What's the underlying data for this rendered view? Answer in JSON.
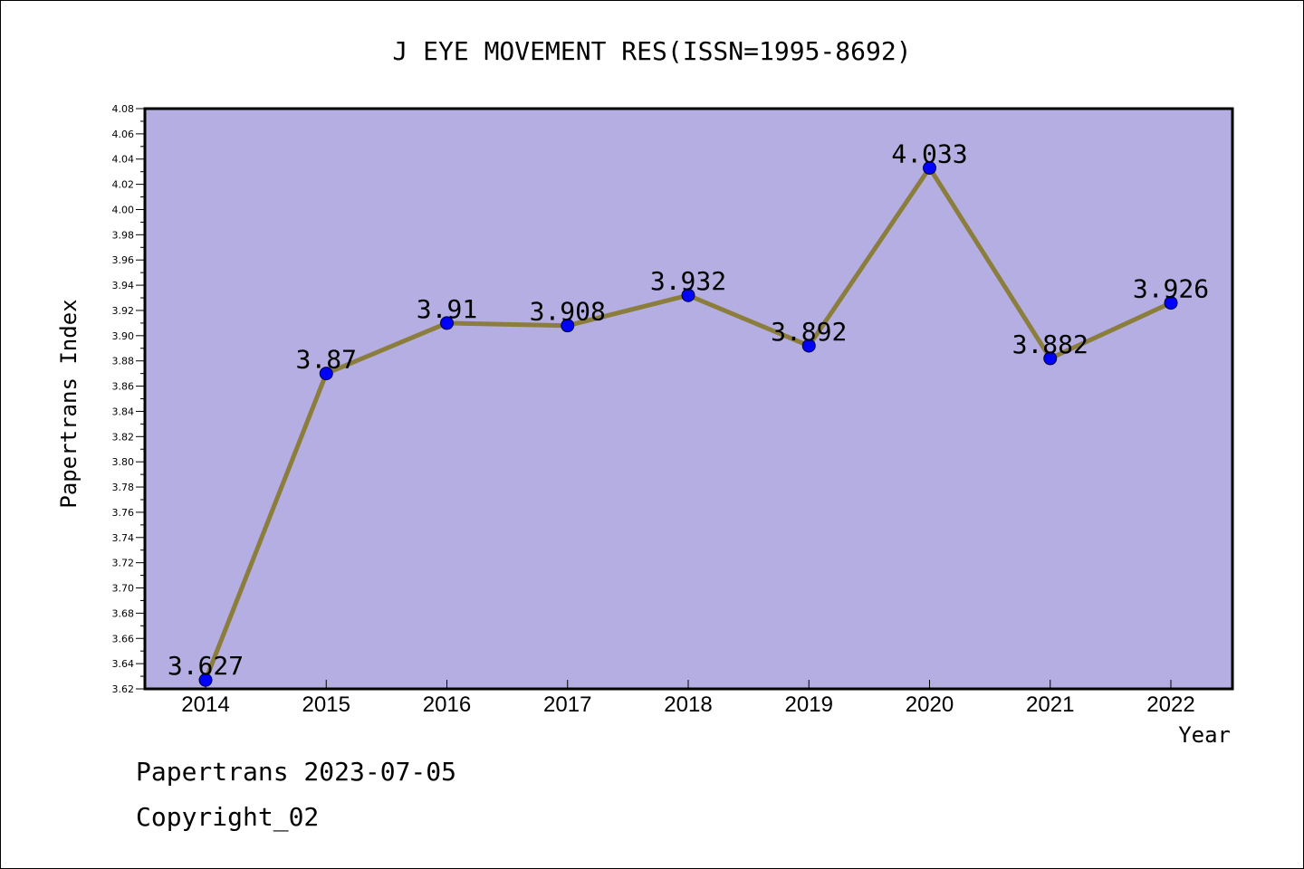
{
  "chart_data": {
    "type": "line",
    "title": "J EYE MOVEMENT RES(ISSN=1995-8692)",
    "xlabel": "Year",
    "ylabel": "Papertrans Index",
    "categories": [
      "2014",
      "2015",
      "2016",
      "2017",
      "2018",
      "2019",
      "2020",
      "2021",
      "2022"
    ],
    "values": [
      3.627,
      3.87,
      3.91,
      3.908,
      3.932,
      3.892,
      4.033,
      3.882,
      3.926
    ],
    "data_labels": [
      "3.627",
      "3.87",
      "3.91",
      "3.908",
      "3.932",
      "3.892",
      "4.033",
      "3.882",
      "3.926"
    ],
    "ylim": [
      3.62,
      4.08
    ],
    "yticks": [
      "3.62",
      "3.64",
      "3.66",
      "3.68",
      "3.70",
      "3.72",
      "3.74",
      "3.76",
      "3.78",
      "3.80",
      "3.82",
      "3.84",
      "3.86",
      "3.88",
      "3.90",
      "3.92",
      "3.94",
      "3.96",
      "3.98",
      "4.00",
      "4.02",
      "4.04",
      "4.06",
      "4.08"
    ],
    "grid": false,
    "colors": {
      "plot_background": "#b5aee2",
      "line": "#8b7d3c",
      "marker": "#0000ff"
    }
  },
  "footer": {
    "line1": "Papertrans 2023-07-05",
    "line2": "Copyright_02"
  }
}
